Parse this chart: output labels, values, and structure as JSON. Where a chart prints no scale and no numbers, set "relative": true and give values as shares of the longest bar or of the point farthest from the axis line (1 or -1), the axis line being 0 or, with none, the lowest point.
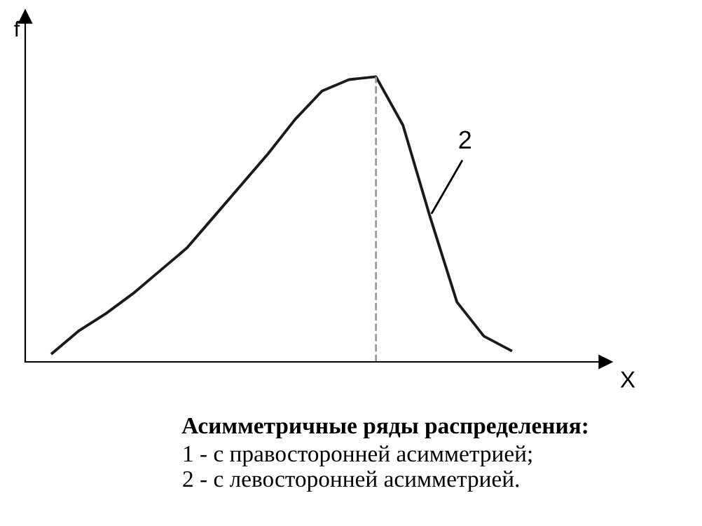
{
  "chart_data": {
    "type": "line",
    "relative": true,
    "title": "Асимметричные ряды распределения:",
    "xlabel": "X",
    "ylabel": "f",
    "categories": [
      null,
      null,
      null,
      null,
      null,
      null,
      null,
      null,
      null,
      null,
      null,
      null,
      null,
      null,
      null,
      null,
      null,
      null
    ],
    "series": [
      {
        "color": "#1a1a1a",
        "values": [
          0.03,
          0.11,
          0.17,
          0.24,
          0.32,
          0.4,
          0.51,
          0.62,
          0.73,
          0.85,
          0.95,
          0.99,
          1.0,
          0.83,
          0.51,
          0.21,
          0.09,
          0.04
        ]
      }
    ],
    "annotations": [
      "2",
      "1 - с правосторонней асимметрией;",
      "2 - с левосторонней асимметрией."
    ],
    "tick_labels": false,
    "marker": "none",
    "line_style": "solid"
  }
}
